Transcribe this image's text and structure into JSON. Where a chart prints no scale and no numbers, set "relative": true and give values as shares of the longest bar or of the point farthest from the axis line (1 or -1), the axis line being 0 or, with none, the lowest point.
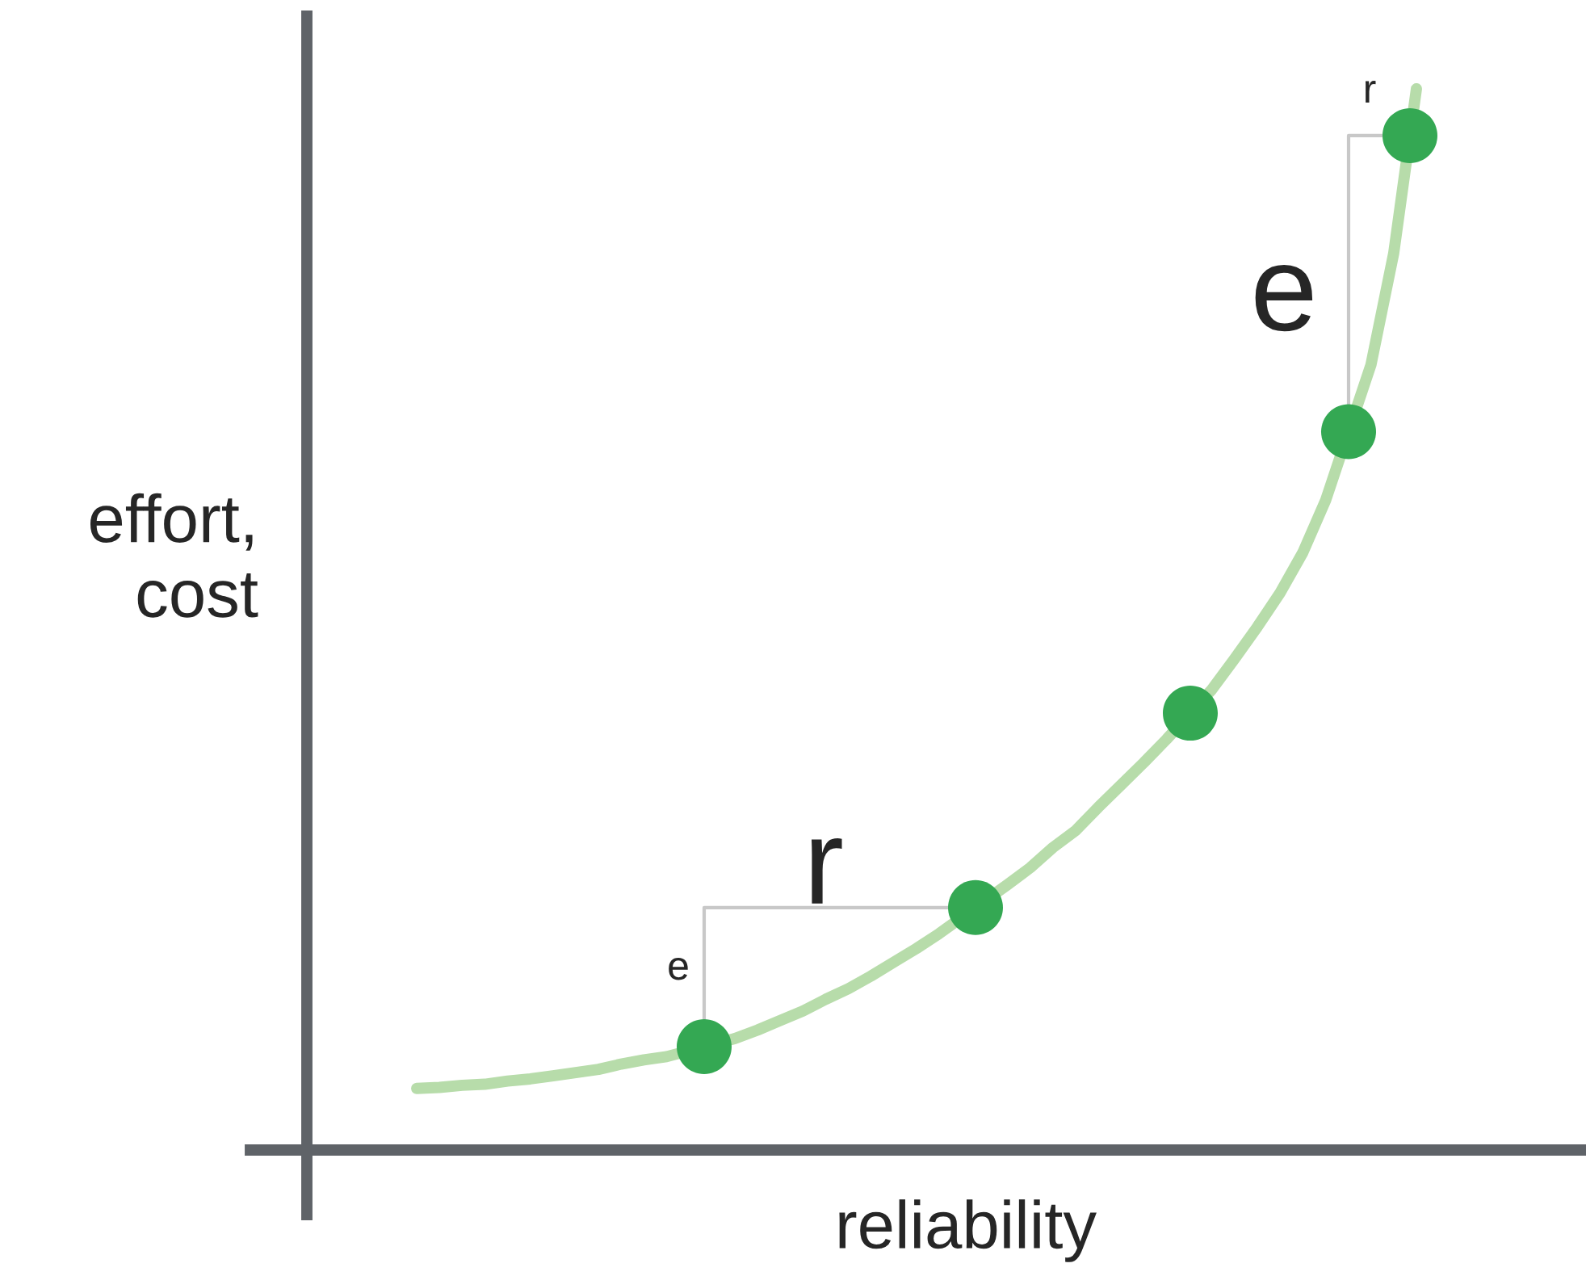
{
  "chart_data": {
    "type": "line",
    "relative": true,
    "xlabel": "reliability",
    "ylabel": "effort,\ncost",
    "categories": [
      null,
      null,
      null,
      null,
      null,
      null,
      null,
      null,
      null,
      null,
      null,
      null,
      null,
      null,
      null,
      null,
      null,
      null,
      null,
      null,
      null,
      null,
      null,
      null,
      null,
      null,
      null,
      null,
      null,
      null,
      null,
      null,
      null,
      null,
      null,
      null,
      null,
      null,
      null,
      null,
      null,
      null,
      null,
      null,
      null
    ],
    "series": [
      {
        "color": "#b7dcaa",
        "values": [
          0.058,
          0.059,
          0.061,
          0.062,
          0.065,
          0.067,
          0.07,
          0.073,
          0.076,
          0.081,
          0.085,
          0.088,
          null,
          null,
          0.105,
          0.113,
          0.122,
          0.131,
          0.142,
          0.152,
          0.164,
          0.177,
          0.19,
          0.204,
          null,
          null,
          0.25,
          0.266,
          0.285,
          0.301,
          0.323,
          0.344,
          0.365,
          0.387,
          null,
          0.434,
          0.463,
          0.493,
          0.525,
          0.563,
          0.612,
          null,
          0.74,
          0.845,
          1.0
        ]
      }
    ],
    "annotations": [
      "r",
      "e",
      "e",
      "r"
    ]
  }
}
